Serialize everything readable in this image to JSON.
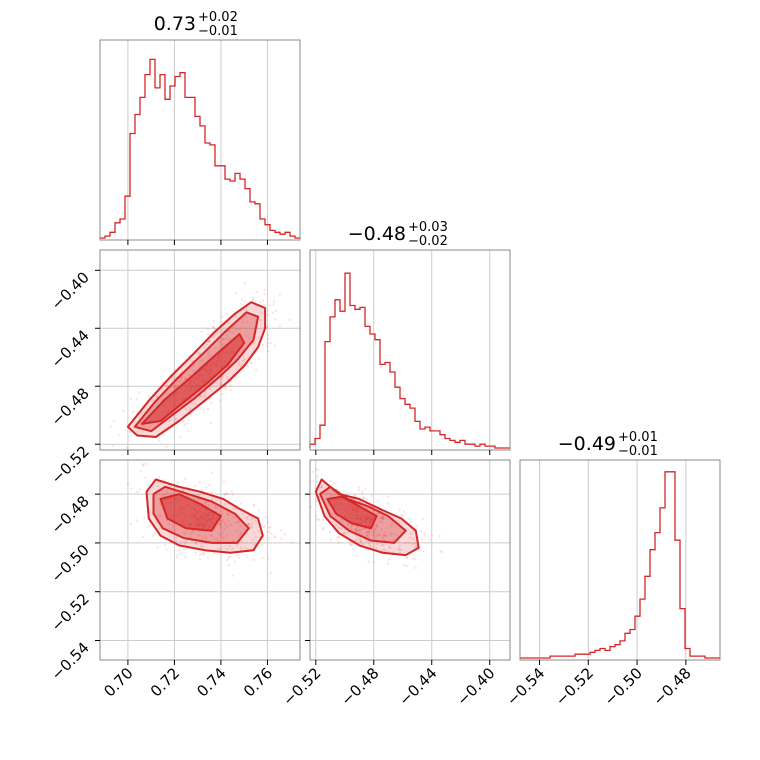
{
  "colors": {
    "accent": "#d62728",
    "grid": "#cccccc",
    "frame": "#888888"
  },
  "chart_data": {
    "type": "corner",
    "grid": true,
    "parameters": [
      {
        "title": {
          "main": "0.73",
          "plus": "+0.02",
          "minus": "−0.01"
        },
        "range": [
          0.688,
          0.774
        ],
        "ticks": [
          0.7,
          0.72,
          0.74,
          0.76
        ],
        "ticklabels": [
          "0.70",
          "0.72",
          "0.74",
          "0.76"
        ],
        "histogram": {
          "edges_start": 0.688,
          "bin_width": 0.00215,
          "heights": [
            0.0,
            0.01,
            0.03,
            0.08,
            0.1,
            0.22,
            0.55,
            0.65,
            0.74,
            0.86,
            0.94,
            0.79,
            0.86,
            0.73,
            0.8,
            0.85,
            0.87,
            0.74,
            0.74,
            0.64,
            0.59,
            0.5,
            0.49,
            0.38,
            0.38,
            0.31,
            0.3,
            0.34,
            0.31,
            0.26,
            0.19,
            0.18,
            0.1,
            0.07,
            0.04,
            0.03,
            0.02,
            0.03,
            0.01,
            0.0
          ]
        }
      },
      {
        "title": {
          "main": "−0.48",
          "plus": "+0.03",
          "minus": "−0.02"
        },
        "range": [
          -0.524,
          -0.386
        ],
        "ticks": [
          -0.4,
          -0.44,
          -0.48,
          -0.52
        ],
        "ticklabels": [
          "−0.40",
          "−0.44",
          "−0.48",
          "−0.52"
        ],
        "histogram": {
          "edges_start": -0.524,
          "bin_width": 0.00345,
          "heights": [
            0.02,
            0.05,
            0.12,
            0.56,
            0.69,
            0.78,
            0.72,
            0.92,
            0.75,
            0.73,
            0.74,
            0.64,
            0.6,
            0.57,
            0.44,
            0.45,
            0.4,
            0.32,
            0.26,
            0.23,
            0.21,
            0.14,
            0.1,
            0.11,
            0.09,
            0.09,
            0.07,
            0.05,
            0.04,
            0.03,
            0.04,
            0.02,
            0.02,
            0.01,
            0.02,
            0.01,
            0.01,
            0.0,
            0.0,
            0.0
          ]
        }
      },
      {
        "title": {
          "main": "−0.49",
          "plus": "+0.01",
          "minus": "−0.01"
        },
        "range": [
          -0.548,
          -0.466
        ],
        "ticks": [
          -0.54,
          -0.52,
          -0.5,
          -0.48
        ],
        "ticklabels": [
          "−0.54",
          "−0.52",
          "−0.50",
          "−0.48"
        ],
        "histogram": {
          "edges_start": -0.548,
          "bin_width": 0.00205,
          "heights": [
            0.0,
            0.0,
            0.0,
            0.0,
            0.0,
            0.0,
            0.01,
            0.01,
            0.01,
            0.01,
            0.01,
            0.02,
            0.02,
            0.02,
            0.03,
            0.04,
            0.05,
            0.04,
            0.06,
            0.07,
            0.09,
            0.13,
            0.15,
            0.22,
            0.31,
            0.43,
            0.57,
            0.66,
            0.79,
            0.98,
            0.98,
            0.62,
            0.26,
            0.05,
            0.01,
            0.01,
            0.01,
            0.0,
            0.0,
            0.0
          ]
        }
      }
    ],
    "pairs": [
      {
        "x_param": 0,
        "y_param": 1,
        "contours": [
          {
            "level": "outer",
            "points": [
              [
                0.7,
                -0.508
              ],
              [
                0.704,
                -0.514
              ],
              [
                0.712,
                -0.515
              ],
              [
                0.722,
                -0.504
              ],
              [
                0.733,
                -0.49
              ],
              [
                0.743,
                -0.477
              ],
              [
                0.75,
                -0.466
              ],
              [
                0.756,
                -0.453
              ],
              [
                0.759,
                -0.44
              ],
              [
                0.759,
                -0.426
              ],
              [
                0.753,
                -0.422
              ],
              [
                0.746,
                -0.43
              ],
              [
                0.737,
                -0.443
              ],
              [
                0.728,
                -0.458
              ],
              [
                0.718,
                -0.474
              ],
              [
                0.709,
                -0.49
              ]
            ]
          },
          {
            "level": "middle",
            "points": [
              [
                0.703,
                -0.508
              ],
              [
                0.71,
                -0.511
              ],
              [
                0.719,
                -0.5
              ],
              [
                0.729,
                -0.488
              ],
              [
                0.739,
                -0.474
              ],
              [
                0.747,
                -0.462
              ],
              [
                0.754,
                -0.448
              ],
              [
                0.756,
                -0.432
              ],
              [
                0.751,
                -0.429
              ],
              [
                0.742,
                -0.442
              ],
              [
                0.732,
                -0.458
              ],
              [
                0.721,
                -0.475
              ],
              [
                0.711,
                -0.492
              ]
            ]
          },
          {
            "level": "inner",
            "points": [
              [
                0.706,
                -0.506
              ],
              [
                0.714,
                -0.504
              ],
              [
                0.724,
                -0.491
              ],
              [
                0.734,
                -0.478
              ],
              [
                0.743,
                -0.465
              ],
              [
                0.75,
                -0.45
              ],
              [
                0.748,
                -0.444
              ],
              [
                0.738,
                -0.458
              ],
              [
                0.727,
                -0.474
              ],
              [
                0.716,
                -0.489
              ]
            ]
          }
        ],
        "points_seed": 11
      },
      {
        "x_param": 0,
        "y_param": 2,
        "contours": [
          {
            "level": "outer",
            "points": [
              [
                0.708,
                -0.479
              ],
              [
                0.712,
                -0.474
              ],
              [
                0.722,
                -0.477
              ],
              [
                0.731,
                -0.479
              ],
              [
                0.741,
                -0.482
              ],
              [
                0.748,
                -0.486
              ],
              [
                0.756,
                -0.49
              ],
              [
                0.758,
                -0.497
              ],
              [
                0.754,
                -0.503
              ],
              [
                0.744,
                -0.504
              ],
              [
                0.733,
                -0.503
              ],
              [
                0.722,
                -0.501
              ],
              [
                0.714,
                -0.497
              ],
              [
                0.709,
                -0.49
              ]
            ]
          },
          {
            "level": "middle",
            "points": [
              [
                0.711,
                -0.48
              ],
              [
                0.716,
                -0.477
              ],
              [
                0.726,
                -0.48
              ],
              [
                0.736,
                -0.483
              ],
              [
                0.746,
                -0.488
              ],
              [
                0.752,
                -0.494
              ],
              [
                0.747,
                -0.5
              ],
              [
                0.736,
                -0.5
              ],
              [
                0.724,
                -0.498
              ],
              [
                0.715,
                -0.494
              ],
              [
                0.711,
                -0.488
              ]
            ]
          },
          {
            "level": "inner",
            "points": [
              [
                0.714,
                -0.482
              ],
              [
                0.722,
                -0.48
              ],
              [
                0.731,
                -0.484
              ],
              [
                0.74,
                -0.489
              ],
              [
                0.736,
                -0.495
              ],
              [
                0.725,
                -0.494
              ],
              [
                0.717,
                -0.49
              ]
            ]
          }
        ],
        "points_seed": 23
      },
      {
        "x_param": 1,
        "y_param": 2,
        "contours": [
          {
            "level": "outer",
            "points": [
              [
                -0.52,
                -0.479
              ],
              [
                -0.516,
                -0.474
              ],
              [
                -0.504,
                -0.48
              ],
              [
                -0.49,
                -0.482
              ],
              [
                -0.476,
                -0.486
              ],
              [
                -0.461,
                -0.49
              ],
              [
                -0.451,
                -0.495
              ],
              [
                -0.449,
                -0.502
              ],
              [
                -0.458,
                -0.505
              ],
              [
                -0.474,
                -0.504
              ],
              [
                -0.49,
                -0.501
              ],
              [
                -0.504,
                -0.496
              ],
              [
                -0.514,
                -0.489
              ]
            ]
          },
          {
            "level": "middle",
            "points": [
              [
                -0.517,
                -0.48
              ],
              [
                -0.51,
                -0.477
              ],
              [
                -0.498,
                -0.482
              ],
              [
                -0.484,
                -0.485
              ],
              [
                -0.47,
                -0.489
              ],
              [
                -0.458,
                -0.495
              ],
              [
                -0.466,
                -0.5
              ],
              [
                -0.482,
                -0.499
              ],
              [
                -0.497,
                -0.495
              ],
              [
                -0.51,
                -0.489
              ]
            ]
          },
          {
            "level": "inner",
            "points": [
              [
                -0.512,
                -0.482
              ],
              [
                -0.502,
                -0.481
              ],
              [
                -0.49,
                -0.485
              ],
              [
                -0.478,
                -0.489
              ],
              [
                -0.482,
                -0.494
              ],
              [
                -0.495,
                -0.492
              ],
              [
                -0.506,
                -0.488
              ]
            ]
          }
        ],
        "points_seed": 37
      }
    ]
  }
}
